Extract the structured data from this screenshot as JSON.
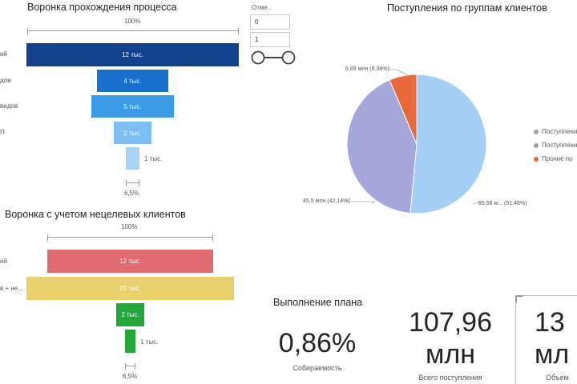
{
  "funnel1": {
    "title": "Воронка прохождения процесса",
    "top_pct": "100%",
    "bottom_pct": "6,5%",
    "stages": [
      {
        "label": "ий",
        "value_label": "12 тыс.",
        "value": 12,
        "color": "#12418B",
        "label_inside": true
      },
      {
        "label": "дов",
        "value_label": "4 тыс.",
        "value": 4,
        "color": "#1A6FCF",
        "label_inside": true
      },
      {
        "label": "видов",
        "value_label": "5 тыс.",
        "value": 5,
        "color": "#3A9BE8",
        "label_inside": true
      },
      {
        "label": "П",
        "value_label": "2 тыс.",
        "value": 2,
        "color": "#7CBDF2",
        "label_inside": true
      },
      {
        "label": "",
        "value_label": "1 тыс.",
        "value": 1,
        "color": "#A8D3F7",
        "label_inside": false
      }
    ]
  },
  "slicer": {
    "title": "Отме..",
    "min_value": "0",
    "max_value": "1"
  },
  "pie": {
    "title": "Поступления по группам клиентов",
    "slices": [
      {
        "label": "55,58 м... (51,48%)",
        "value": 55.58,
        "pct": 51.48,
        "color": "#A3CFF7"
      },
      {
        "label": "45,5 млн (42,14%)",
        "value": 45.5,
        "pct": 42.14,
        "color": "#A3A7D9"
      },
      {
        "label": "6,89 млн (6,38%)",
        "value": 6.89,
        "pct": 6.38,
        "color": "#E8693A"
      }
    ],
    "legend": [
      {
        "label": "Поступлени",
        "color": "#A0A0A0"
      },
      {
        "label": "Поступлени",
        "color": "#A0A0A0"
      },
      {
        "label": "Прочие по",
        "color": "#E8693A"
      }
    ]
  },
  "funnel2": {
    "title": "Воронка с учетом нецелевых клиентов",
    "top_pct": "100%",
    "bottom_pct": "6,5%",
    "stages": [
      {
        "label": "ий",
        "value_label": "12 тыс.",
        "value": 12,
        "color": "#E06A72",
        "label_inside": true
      },
      {
        "label": "в + не...",
        "value_label": "15 тыс.",
        "value": 15,
        "color": "#E8D06A",
        "label_inside": true
      },
      {
        "label": "",
        "value_label": "2 тыс.",
        "value": 2,
        "color": "#22A83A",
        "label_inside": true
      },
      {
        "label": "",
        "value_label": "1 тыс.",
        "value": 1,
        "color": "#22A83A",
        "label_inside": false
      }
    ]
  },
  "kpi_plan": {
    "title": "Выполнение плана",
    "value": "0,86%",
    "subtitle": "Собираемость"
  },
  "kpi_total": {
    "value_line1": "107,96",
    "value_line2": "млн",
    "subtitle": "Всего поступления"
  },
  "kpi_volume": {
    "value_line1": "13",
    "value_line2": "мл",
    "subtitle": "Объем"
  }
}
